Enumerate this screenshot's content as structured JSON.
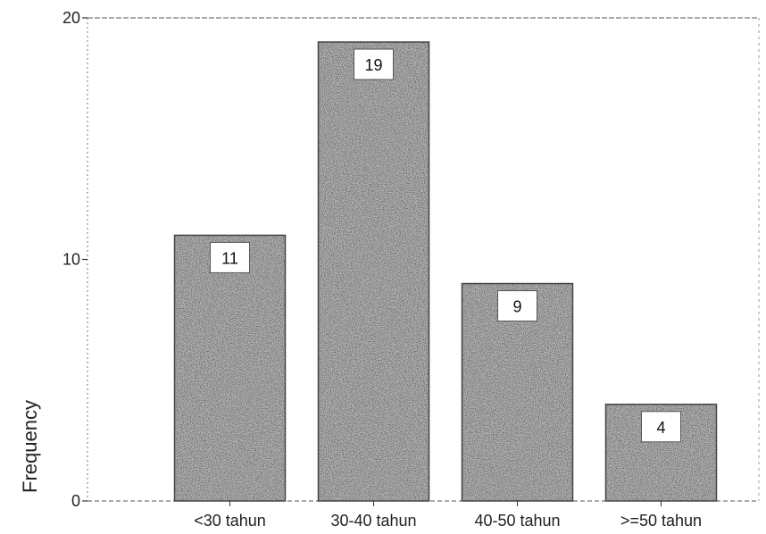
{
  "chart_data": {
    "type": "bar",
    "categories": [
      "<30 tahun",
      "30-40 tahun",
      "40-50 tahun",
      ">=50 tahun"
    ],
    "values": [
      11,
      19,
      9,
      4
    ],
    "data_labels": [
      "11",
      "19",
      "9",
      "4"
    ],
    "title": "",
    "xlabel": "",
    "ylabel": "Frequency",
    "ylim": [
      0,
      20
    ],
    "yticks": [
      0,
      10,
      20
    ],
    "ytick_labels": [
      "0",
      "10",
      "20"
    ],
    "grid": false,
    "bar_color": "#b5b5b5",
    "frame_color": "#555555"
  }
}
